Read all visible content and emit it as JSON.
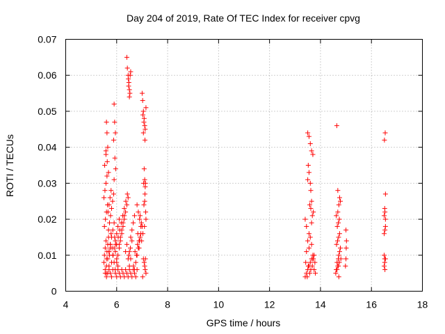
{
  "chart_data": {
    "type": "scatter",
    "title": "Day 204 of 2019, Rate Of TEC Index for receiver cpvg",
    "xlabel": "GPS time / hours",
    "ylabel": "ROTI / TECUs",
    "xlim": [
      4,
      18
    ],
    "ylim": [
      0,
      0.07
    ],
    "xticks": [
      "4",
      "6",
      "8",
      "10",
      "12",
      "14",
      "16",
      "18"
    ],
    "yticks": [
      "0",
      "0.01",
      "0.02",
      "0.03",
      "0.04",
      "0.05",
      "0.06",
      "0.07"
    ],
    "grid": true,
    "marker": "+",
    "color": "#ff0000",
    "series": [
      {
        "x": [
          5.5,
          5.52,
          5.55,
          5.58,
          5.6,
          5.62,
          5.65,
          5.68,
          5.7,
          5.72,
          5.75,
          5.78,
          5.52,
          5.56,
          5.6,
          5.64,
          5.68,
          5.72,
          5.76,
          5.8,
          5.84,
          5.88,
          5.92,
          5.96,
          5.55,
          5.6,
          5.65,
          5.7,
          5.75,
          5.8,
          5.85,
          5.9,
          5.95,
          6.0,
          6.05,
          6.1,
          5.5,
          5.54,
          5.58,
          5.62,
          5.66,
          5.7,
          5.74,
          5.78,
          5.82,
          5.86,
          5.9,
          5.94,
          6.0,
          6.05,
          6.1,
          6.15,
          6.2,
          6.25,
          6.3,
          6.35,
          6.4,
          6.45,
          6.5,
          6.55,
          6.0,
          6.06,
          6.12,
          6.18,
          6.24,
          6.3,
          6.36,
          6.42,
          6.48,
          6.54,
          6.6,
          6.66,
          6.7,
          6.75,
          6.8,
          6.85,
          6.9,
          6.95,
          7.0,
          7.05,
          7.1,
          7.15,
          6.72,
          6.82,
          6.92,
          7.02,
          7.12,
          6.78,
          6.88,
          6.98,
          7.08,
          7.13,
          5.53,
          5.58,
          5.63,
          5.68,
          5.6,
          5.62,
          5.65,
          5.58,
          5.9,
          5.92,
          5.95,
          5.88,
          5.93,
          5.96,
          5.9,
          5.6,
          5.65,
          5.7,
          5.75,
          5.8,
          5.85,
          5.95,
          6.0,
          6.05,
          6.1,
          6.15,
          6.2,
          6.25,
          6.3,
          6.35,
          6.4,
          6.45,
          6.5,
          6.55,
          6.6,
          6.65,
          6.7,
          6.75,
          6.8,
          6.4,
          6.42,
          6.45,
          6.48,
          6.5,
          6.52,
          6.55,
          6.46,
          6.5,
          6.53,
          6.47,
          6.8,
          6.85,
          6.9,
          6.95,
          6.83,
          6.88,
          6.92,
          6.97,
          7.0,
          7.02,
          7.05,
          7.08,
          7.1,
          7.12,
          7.15,
          7.03,
          7.07,
          7.11,
          7.05,
          7.08,
          7.1,
          7.13,
          7.12,
          7.06,
          7.1,
          7.14,
          7.15,
          7.09,
          7.03,
          7.11,
          7.07,
          5.55,
          5.6,
          5.65,
          5.7,
          5.75,
          5.8,
          5.85,
          5.9,
          5.95,
          6.0,
          6.05,
          6.1,
          6.15,
          6.2,
          6.25,
          6.3,
          6.35,
          6.4,
          6.45,
          6.5,
          6.55,
          6.6,
          6.65,
          6.7,
          13.4,
          13.45,
          13.5,
          13.55,
          13.6,
          13.65,
          13.7,
          13.75,
          13.8,
          13.42,
          13.52,
          13.62,
          13.72,
          13.48,
          13.58,
          13.68,
          13.78,
          13.45,
          13.55,
          13.65,
          13.75,
          13.5,
          13.6,
          13.7,
          13.5,
          13.52,
          13.55,
          13.6,
          13.62,
          13.65,
          13.7,
          13.72,
          13.4,
          13.45,
          13.55,
          13.65,
          13.5,
          13.55,
          13.6,
          13.65,
          13.7,
          13.58,
          13.62,
          13.68,
          14.6,
          14.62,
          14.65,
          14.68,
          14.7,
          14.72,
          14.75,
          14.78,
          14.8,
          14.63,
          14.67,
          14.71,
          14.75,
          14.66,
          14.7,
          14.74,
          14.62,
          14.68,
          14.72,
          14.78,
          14.65,
          14.7,
          14.74,
          14.68,
          14.64,
          14.72,
          15.0,
          15.02,
          15.0,
          14.98,
          15.01,
          14.75,
          16.5,
          16.52,
          16.55,
          16.5,
          16.53,
          16.55,
          16.5,
          16.52,
          16.55,
          16.51,
          16.54,
          16.53,
          16.52,
          16.5,
          16.55,
          16.53
        ],
        "y": [
          0.008,
          0.01,
          0.012,
          0.014,
          0.009,
          0.011,
          0.013,
          0.015,
          0.007,
          0.01,
          0.012,
          0.016,
          0.018,
          0.02,
          0.022,
          0.024,
          0.017,
          0.019,
          0.021,
          0.023,
          0.025,
          0.027,
          0.015,
          0.013,
          0.006,
          0.005,
          0.009,
          0.011,
          0.013,
          0.008,
          0.01,
          0.012,
          0.014,
          0.016,
          0.018,
          0.02,
          0.026,
          0.028,
          0.03,
          0.032,
          0.022,
          0.024,
          0.026,
          0.028,
          0.012,
          0.01,
          0.008,
          0.006,
          0.008,
          0.01,
          0.012,
          0.014,
          0.016,
          0.018,
          0.02,
          0.022,
          0.024,
          0.026,
          0.011,
          0.009,
          0.013,
          0.015,
          0.017,
          0.019,
          0.021,
          0.023,
          0.025,
          0.027,
          0.01,
          0.012,
          0.014,
          0.007,
          0.006,
          0.008,
          0.01,
          0.012,
          0.014,
          0.016,
          0.018,
          0.009,
          0.007,
          0.005,
          0.011,
          0.013,
          0.015,
          0.004,
          0.006,
          0.01,
          0.012,
          0.014,
          0.008,
          0.009,
          0.035,
          0.038,
          0.036,
          0.033,
          0.047,
          0.044,
          0.04,
          0.039,
          0.052,
          0.047,
          0.044,
          0.042,
          0.037,
          0.034,
          0.031,
          0.004,
          0.005,
          0.006,
          0.005,
          0.004,
          0.006,
          0.005,
          0.004,
          0.006,
          0.005,
          0.004,
          0.006,
          0.005,
          0.004,
          0.006,
          0.005,
          0.004,
          0.006,
          0.005,
          0.004,
          0.006,
          0.005,
          0.004,
          0.006,
          0.065,
          0.062,
          0.06,
          0.058,
          0.056,
          0.055,
          0.061,
          0.059,
          0.054,
          0.06,
          0.057,
          0.024,
          0.022,
          0.02,
          0.018,
          0.016,
          0.014,
          0.021,
          0.019,
          0.055,
          0.053,
          0.05,
          0.048,
          0.046,
          0.045,
          0.051,
          0.049,
          0.047,
          0.042,
          0.044,
          0.034,
          0.031,
          0.03,
          0.029,
          0.03,
          0.025,
          0.022,
          0.02,
          0.018,
          0.016,
          0.027,
          0.024,
          0.005,
          0.007,
          0.009,
          0.011,
          0.013,
          0.015,
          0.017,
          0.019,
          0.011,
          0.009,
          0.007,
          0.013,
          0.015,
          0.017,
          0.019,
          0.021,
          0.011,
          0.013,
          0.009,
          0.007,
          0.015,
          0.017,
          0.019,
          0.021,
          0.004,
          0.005,
          0.006,
          0.007,
          0.008,
          0.009,
          0.01,
          0.006,
          0.005,
          0.008,
          0.007,
          0.006,
          0.009,
          0.004,
          0.005,
          0.007,
          0.008,
          0.011,
          0.012,
          0.013,
          0.01,
          0.014,
          0.015,
          0.009,
          0.031,
          0.035,
          0.033,
          0.03,
          0.028,
          0.025,
          0.038,
          0.022,
          0.02,
          0.018,
          0.016,
          0.019,
          0.044,
          0.043,
          0.041,
          0.039,
          0.038,
          0.024,
          0.023,
          0.021,
          0.005,
          0.006,
          0.008,
          0.007,
          0.009,
          0.01,
          0.011,
          0.012,
          0.009,
          0.013,
          0.014,
          0.015,
          0.016,
          0.018,
          0.019,
          0.02,
          0.021,
          0.022,
          0.024,
          0.025,
          0.006,
          0.007,
          0.008,
          0.028,
          0.046,
          0.004,
          0.017,
          0.014,
          0.009,
          0.007,
          0.012,
          0.026,
          0.007,
          0.008,
          0.009,
          0.01,
          0.017,
          0.02,
          0.021,
          0.023,
          0.027,
          0.042,
          0.044,
          0.006,
          0.009,
          0.016,
          0.018,
          0.022
        ]
      }
    ]
  }
}
